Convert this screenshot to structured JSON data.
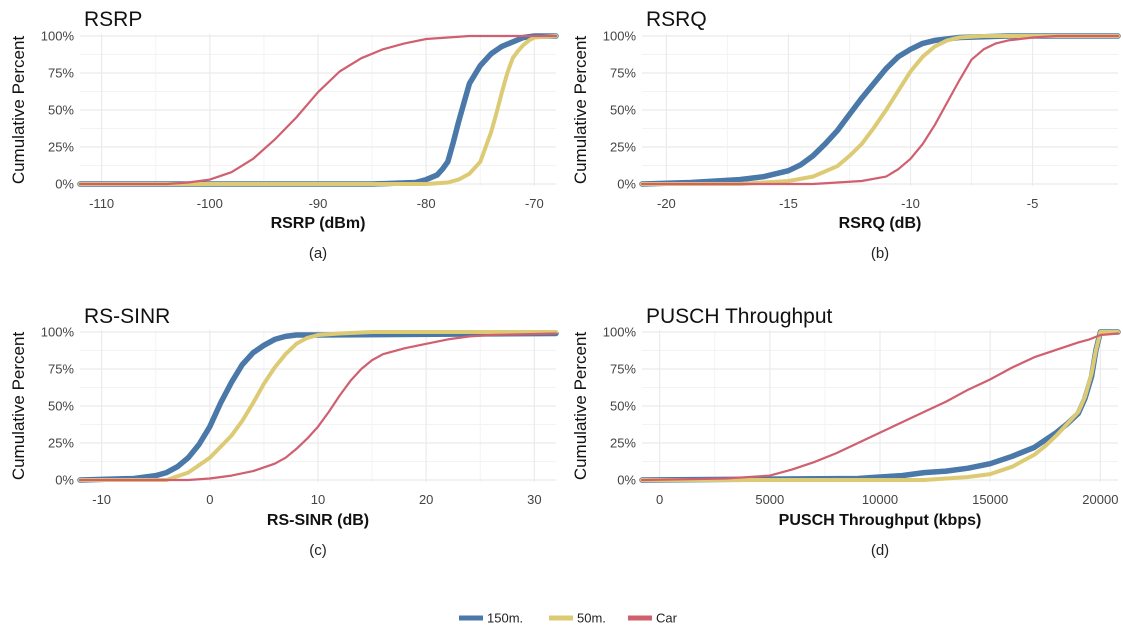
{
  "chart_data": [
    {
      "type": "line",
      "title": "RSRP",
      "xlabel": "RSRP (dBm)",
      "ylabel": "Cumulative Percent",
      "caption": "(a)",
      "xlim": [
        -112,
        -68
      ],
      "ylim": [
        0,
        100
      ],
      "xticks": [
        -110,
        -100,
        -90,
        -80,
        -70
      ],
      "yticks": [
        0,
        25,
        50,
        75,
        100
      ],
      "ytick_labels": [
        "0%",
        "25%",
        "50%",
        "75%",
        "100%"
      ],
      "grid": true,
      "series": [
        {
          "name": "150m.",
          "x": [
            -112,
            -85,
            -81,
            -80,
            -79,
            -78.5,
            -78,
            -77.5,
            -77,
            -76.5,
            -76,
            -75,
            -74,
            -73,
            -72,
            -71,
            -70,
            -68
          ],
          "y": [
            0,
            0,
            1,
            3,
            6,
            10,
            15,
            28,
            42,
            55,
            68,
            80,
            88,
            93,
            96,
            99,
            100,
            100
          ]
        },
        {
          "name": "50m.",
          "x": [
            -112,
            -80,
            -78,
            -77,
            -76,
            -75,
            -74.5,
            -74,
            -73.5,
            -73,
            -72.5,
            -72,
            -71.5,
            -71,
            -70.5,
            -70,
            -68
          ],
          "y": [
            0,
            0,
            1,
            3,
            7,
            15,
            25,
            35,
            48,
            62,
            75,
            85,
            90,
            94,
            97,
            99,
            100
          ]
        },
        {
          "name": "Car",
          "x": [
            -112,
            -104,
            -102,
            -100,
            -98,
            -96,
            -94,
            -92,
            -90,
            -88,
            -86,
            -84,
            -82,
            -80,
            -78,
            -76,
            -74,
            -68
          ],
          "y": [
            0,
            0,
            1,
            3,
            8,
            17,
            30,
            45,
            62,
            76,
            85,
            91,
            95,
            98,
            99,
            100,
            100,
            100
          ]
        }
      ]
    },
    {
      "type": "line",
      "title": "RSRQ",
      "xlabel": "RSRQ (dB)",
      "ylabel": "Cumulative Percent",
      "caption": "(b)",
      "xlim": [
        -21,
        -1.5
      ],
      "ylim": [
        0,
        100
      ],
      "xticks": [
        -20,
        -15,
        -10,
        -5
      ],
      "yticks": [
        0,
        25,
        50,
        75,
        100
      ],
      "ytick_labels": [
        "0%",
        "25%",
        "50%",
        "75%",
        "100%"
      ],
      "grid": true,
      "series": [
        {
          "name": "150m.",
          "x": [
            -21,
            -19,
            -17,
            -16,
            -15,
            -14.5,
            -14,
            -13.5,
            -13,
            -12.5,
            -12,
            -11.5,
            -11,
            -10.5,
            -10,
            -9.5,
            -9,
            -8,
            -6,
            -1.5
          ],
          "y": [
            0,
            1,
            3,
            5,
            9,
            13,
            19,
            27,
            36,
            47,
            58,
            68,
            78,
            86,
            91,
            95,
            97,
            99,
            100,
            100
          ]
        },
        {
          "name": "50m.",
          "x": [
            -21,
            -17,
            -15,
            -14,
            -13,
            -12.5,
            -12,
            -11.5,
            -11,
            -10.5,
            -10,
            -9.5,
            -9,
            -8.5,
            -8,
            -7,
            -6,
            -1.5
          ],
          "y": [
            0,
            0,
            2,
            5,
            12,
            19,
            27,
            38,
            50,
            63,
            76,
            86,
            93,
            97,
            99,
            100,
            100,
            100
          ]
        },
        {
          "name": "Car",
          "x": [
            -21,
            -14,
            -12,
            -11,
            -10.5,
            -10,
            -9.5,
            -9,
            -8.5,
            -8,
            -7.5,
            -7,
            -6.5,
            -6,
            -5,
            -4,
            -1.5
          ],
          "y": [
            0,
            0,
            2,
            5,
            10,
            17,
            27,
            40,
            55,
            70,
            84,
            91,
            95,
            97,
            99,
            100,
            100
          ]
        }
      ]
    },
    {
      "type": "line",
      "title": "RS-SINR",
      "xlabel": "RS-SINR (dB)",
      "ylabel": "Cumulative Percent",
      "caption": "(c)",
      "xlim": [
        -12,
        32
      ],
      "ylim": [
        0,
        100
      ],
      "xticks": [
        -10,
        0,
        10,
        20,
        30
      ],
      "yticks": [
        0,
        25,
        50,
        75,
        100
      ],
      "ytick_labels": [
        "0%",
        "25%",
        "50%",
        "75%",
        "100%"
      ],
      "grid": true,
      "series": [
        {
          "name": "150m.",
          "x": [
            -12,
            -7,
            -5,
            -4,
            -3,
            -2,
            -1,
            0,
            1,
            2,
            3,
            4,
            5,
            6,
            7,
            8,
            10,
            32
          ],
          "y": [
            0,
            1,
            3,
            5,
            9,
            15,
            24,
            36,
            52,
            66,
            78,
            86,
            91,
            95,
            97,
            98,
            98,
            99
          ]
        },
        {
          "name": "50m.",
          "x": [
            -12,
            -4,
            -2,
            0,
            2,
            3,
            4,
            5,
            6,
            7,
            8,
            9,
            10,
            12,
            15,
            20,
            32
          ],
          "y": [
            0,
            0,
            5,
            15,
            30,
            40,
            52,
            65,
            76,
            85,
            92,
            96,
            98,
            99,
            100,
            100,
            100
          ]
        },
        {
          "name": "Car",
          "x": [
            -12,
            -2,
            0,
            2,
            4,
            6,
            7,
            8,
            9,
            10,
            11,
            12,
            13,
            14,
            15,
            16,
            18,
            20,
            22,
            24,
            26,
            32
          ],
          "y": [
            0,
            0,
            1,
            3,
            6,
            11,
            15,
            21,
            28,
            36,
            46,
            57,
            67,
            75,
            81,
            85,
            89,
            92,
            95,
            97,
            98,
            99
          ]
        }
      ]
    },
    {
      "type": "line",
      "title": "PUSCH Throughput",
      "xlabel": "PUSCH Throughput (kbps)",
      "ylabel": "Cumulative Percent",
      "caption": "(d)",
      "xlim": [
        -800,
        20800
      ],
      "ylim": [
        0,
        100
      ],
      "xticks": [
        0,
        5000,
        10000,
        15000,
        20000
      ],
      "yticks": [
        0,
        25,
        50,
        75,
        100
      ],
      "ytick_labels": [
        "0%",
        "25%",
        "50%",
        "75%",
        "100%"
      ],
      "grid": true,
      "series": [
        {
          "name": "150m.",
          "x": [
            -800,
            9000,
            10000,
            11000,
            12000,
            13000,
            14000,
            15000,
            16000,
            17000,
            17500,
            18000,
            18500,
            19000,
            19300,
            19600,
            19800,
            20000,
            20800
          ],
          "y": [
            0,
            1,
            2,
            3,
            5,
            6,
            8,
            11,
            16,
            22,
            27,
            32,
            38,
            45,
            55,
            70,
            88,
            100,
            100
          ]
        },
        {
          "name": "50m.",
          "x": [
            -800,
            12000,
            13000,
            14000,
            15000,
            16000,
            17000,
            17500,
            18000,
            18500,
            19000,
            19300,
            19600,
            19800,
            20000,
            20800
          ],
          "y": [
            0,
            0,
            1,
            2,
            4,
            9,
            17,
            23,
            30,
            38,
            46,
            56,
            72,
            88,
            100,
            100
          ]
        },
        {
          "name": "Car",
          "x": [
            -800,
            3000,
            5000,
            6000,
            7000,
            8000,
            9000,
            10000,
            11000,
            12000,
            13000,
            14000,
            15000,
            16000,
            17000,
            18000,
            19000,
            19500,
            20000,
            20800
          ],
          "y": [
            0,
            1,
            3,
            7,
            12,
            18,
            25,
            32,
            39,
            46,
            53,
            61,
            68,
            76,
            83,
            88,
            93,
            95,
            98,
            99
          ]
        }
      ]
    }
  ],
  "legend": {
    "position": "bottom",
    "items": [
      {
        "label": "150m.",
        "color": "#4a78a8"
      },
      {
        "label": "50m.",
        "color": "#dccb74"
      },
      {
        "label": "Car",
        "color": "#d0606f"
      }
    ]
  },
  "colors": {
    "150m.": "#4a78a8",
    "50m.": "#dccb74",
    "Car": "#d0606f",
    "grid": "#ebebeb"
  }
}
